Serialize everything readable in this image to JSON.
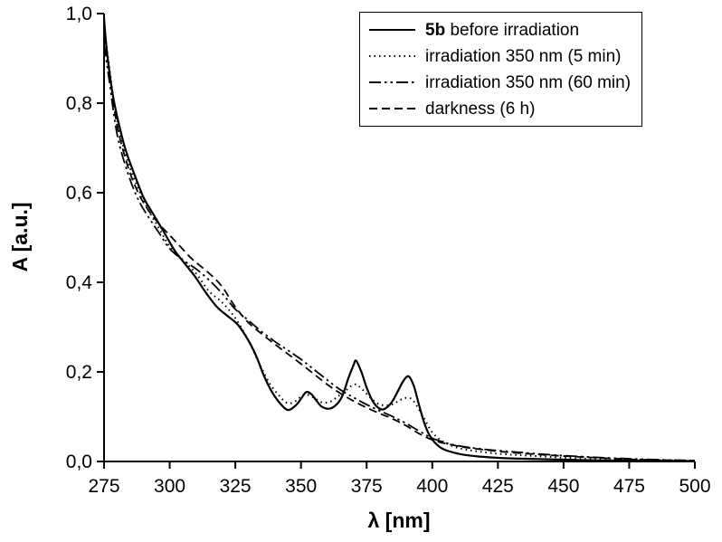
{
  "chart_data": {
    "type": "line",
    "title": "",
    "xlabel": "λ [nm]",
    "ylabel": "A [a.u.]",
    "xlim": [
      275,
      500
    ],
    "ylim": [
      0,
      1.0
    ],
    "grid": false,
    "legend_position": "top-right",
    "axis_color": "#000000",
    "line_color": "#000000",
    "x_ticks": [
      {
        "value": 275,
        "label": "275"
      },
      {
        "value": 300,
        "label": "300"
      },
      {
        "value": 325,
        "label": "325"
      },
      {
        "value": 350,
        "label": "350"
      },
      {
        "value": 375,
        "label": "375"
      },
      {
        "value": 400,
        "label": "400"
      },
      {
        "value": 425,
        "label": "425"
      },
      {
        "value": 450,
        "label": "450"
      },
      {
        "value": 475,
        "label": "475"
      },
      {
        "value": 500,
        "label": "500"
      }
    ],
    "y_ticks": [
      {
        "value": 0.0,
        "label": "0,0"
      },
      {
        "value": 0.2,
        "label": "0,2"
      },
      {
        "value": 0.4,
        "label": "0,4"
      },
      {
        "value": 0.6,
        "label": "0,6"
      },
      {
        "value": 0.8,
        "label": "0,8"
      },
      {
        "value": 1.0,
        "label": "1,0"
      }
    ],
    "series": [
      {
        "name": "5b before irradiation",
        "legend_bold": "5b",
        "legend_text": " before irradiation",
        "dash": "none",
        "width": 2.2,
        "x": [
          275,
          276,
          278,
          280,
          283,
          286,
          290,
          294,
          298,
          302,
          306,
          310,
          314,
          318,
          322,
          326,
          330,
          333,
          336,
          339,
          342,
          345,
          348,
          350,
          352,
          354,
          356,
          358,
          361,
          364,
          366,
          368,
          370,
          371,
          373,
          375,
          377,
          379,
          381,
          383,
          385,
          387,
          389,
          391,
          393,
          395,
          397,
          399,
          401,
          404,
          408,
          412,
          418,
          425,
          435,
          450,
          470,
          500
        ],
        "y": [
          0.99,
          0.92,
          0.83,
          0.77,
          0.7,
          0.65,
          0.59,
          0.55,
          0.51,
          0.47,
          0.44,
          0.41,
          0.375,
          0.345,
          0.325,
          0.305,
          0.27,
          0.235,
          0.19,
          0.155,
          0.13,
          0.115,
          0.125,
          0.14,
          0.155,
          0.15,
          0.135,
          0.122,
          0.118,
          0.13,
          0.15,
          0.185,
          0.215,
          0.225,
          0.2,
          0.165,
          0.138,
          0.122,
          0.116,
          0.122,
          0.136,
          0.158,
          0.18,
          0.19,
          0.168,
          0.125,
          0.085,
          0.058,
          0.042,
          0.028,
          0.02,
          0.015,
          0.011,
          0.008,
          0.006,
          0.004,
          0.002,
          0.001
        ]
      },
      {
        "name": "irradiation 350 nm (5 min)",
        "legend_bold": "",
        "legend_text": "irradiation 350 nm (5 min)",
        "dash": "1.5,4",
        "width": 2,
        "x": [
          275,
          277,
          280,
          284,
          288,
          292,
          296,
          300,
          305,
          310,
          315,
          320,
          325,
          330,
          334,
          338,
          342,
          345,
          348,
          350,
          352,
          355,
          358,
          361,
          364,
          367,
          369,
          371,
          373,
          376,
          379,
          382,
          385,
          388,
          390,
          392,
          394,
          397,
          400,
          404,
          410,
          418,
          428,
          440,
          460,
          500
        ],
        "y": [
          0.97,
          0.88,
          0.76,
          0.67,
          0.61,
          0.56,
          0.52,
          0.48,
          0.45,
          0.42,
          0.38,
          0.355,
          0.32,
          0.27,
          0.22,
          0.175,
          0.145,
          0.13,
          0.135,
          0.145,
          0.15,
          0.142,
          0.132,
          0.133,
          0.145,
          0.158,
          0.168,
          0.172,
          0.163,
          0.145,
          0.13,
          0.125,
          0.128,
          0.138,
          0.142,
          0.14,
          0.125,
          0.095,
          0.065,
          0.045,
          0.03,
          0.022,
          0.016,
          0.012,
          0.006,
          0.002
        ]
      },
      {
        "name": "irradiation 350 nm (60 min)",
        "legend_bold": "",
        "legend_text": "irradiation 350 nm (60 min)",
        "dash": "13,4,2.5,4,2.5,4",
        "width": 1.8,
        "x": [
          275,
          277,
          280,
          284,
          288,
          292,
          296,
          300,
          305,
          310,
          315,
          320,
          325,
          330,
          335,
          340,
          345,
          350,
          355,
          360,
          365,
          370,
          375,
          380,
          385,
          390,
          395,
          400,
          405,
          410,
          420,
          430,
          445,
          460,
          480,
          500
        ],
        "y": [
          0.93,
          0.85,
          0.73,
          0.645,
          0.585,
          0.545,
          0.51,
          0.475,
          0.45,
          0.43,
          0.405,
          0.375,
          0.34,
          0.315,
          0.29,
          0.268,
          0.248,
          0.228,
          0.205,
          0.182,
          0.16,
          0.143,
          0.127,
          0.113,
          0.1,
          0.085,
          0.068,
          0.052,
          0.042,
          0.035,
          0.027,
          0.022,
          0.015,
          0.01,
          0.005,
          0.002
        ]
      },
      {
        "name": "darkness (6 h)",
        "legend_bold": "",
        "legend_text": "darkness (6 h)",
        "dash": "9,5",
        "width": 1.8,
        "x": [
          275,
          277,
          280,
          284,
          288,
          292,
          296,
          300,
          304,
          308,
          312,
          316,
          320,
          325,
          330,
          335,
          340,
          345,
          350,
          355,
          360,
          365,
          370,
          375,
          380,
          385,
          390,
          395,
          400,
          405,
          412,
          420,
          430,
          445,
          460,
          480,
          500
        ],
        "y": [
          0.95,
          0.87,
          0.75,
          0.66,
          0.6,
          0.56,
          0.53,
          0.505,
          0.48,
          0.455,
          0.435,
          0.415,
          0.39,
          0.345,
          0.31,
          0.285,
          0.262,
          0.24,
          0.218,
          0.195,
          0.172,
          0.152,
          0.135,
          0.12,
          0.107,
          0.095,
          0.08,
          0.062,
          0.048,
          0.04,
          0.032,
          0.026,
          0.02,
          0.014,
          0.009,
          0.004,
          0.002
        ]
      }
    ]
  }
}
